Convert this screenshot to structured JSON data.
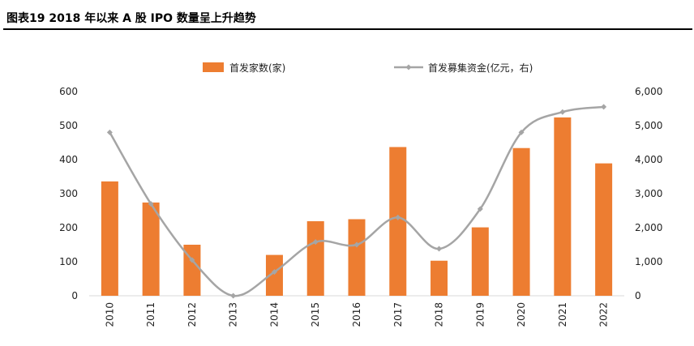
{
  "figure": {
    "title": "图表19    2018 年以来 A 股 IPO 数量呈上升趋势"
  },
  "chart_data": {
    "type": "bar",
    "categories": [
      "2010",
      "2011",
      "2012",
      "2013",
      "2014",
      "2015",
      "2016",
      "2017",
      "2018",
      "2019",
      "2020",
      "2021",
      "2022"
    ],
    "series": [
      {
        "name": "首发家数(家)",
        "type": "bar",
        "axis": "left",
        "color": "#ED7D31",
        "values": [
          336,
          274,
          150,
          0,
          120,
          219,
          225,
          437,
          103,
          201,
          434,
          524,
          389
        ]
      },
      {
        "name": "首发募集资金(亿元，右)",
        "type": "line",
        "axis": "right",
        "color": "#A5A5A5",
        "values": [
          4800,
          2700,
          1050,
          0,
          700,
          1580,
          1500,
          2300,
          1380,
          2550,
          4800,
          5400,
          5550
        ]
      }
    ],
    "y_left": {
      "min": 0,
      "max": 600,
      "ticks": [
        0,
        100,
        200,
        300,
        400,
        500,
        600
      ]
    },
    "y_right": {
      "min": 0,
      "max": 6000,
      "ticks": [
        "0",
        "1,000",
        "2,000",
        "3,000",
        "4,000",
        "5,000",
        "6,000"
      ]
    },
    "legend": "top-center",
    "grid": false
  }
}
